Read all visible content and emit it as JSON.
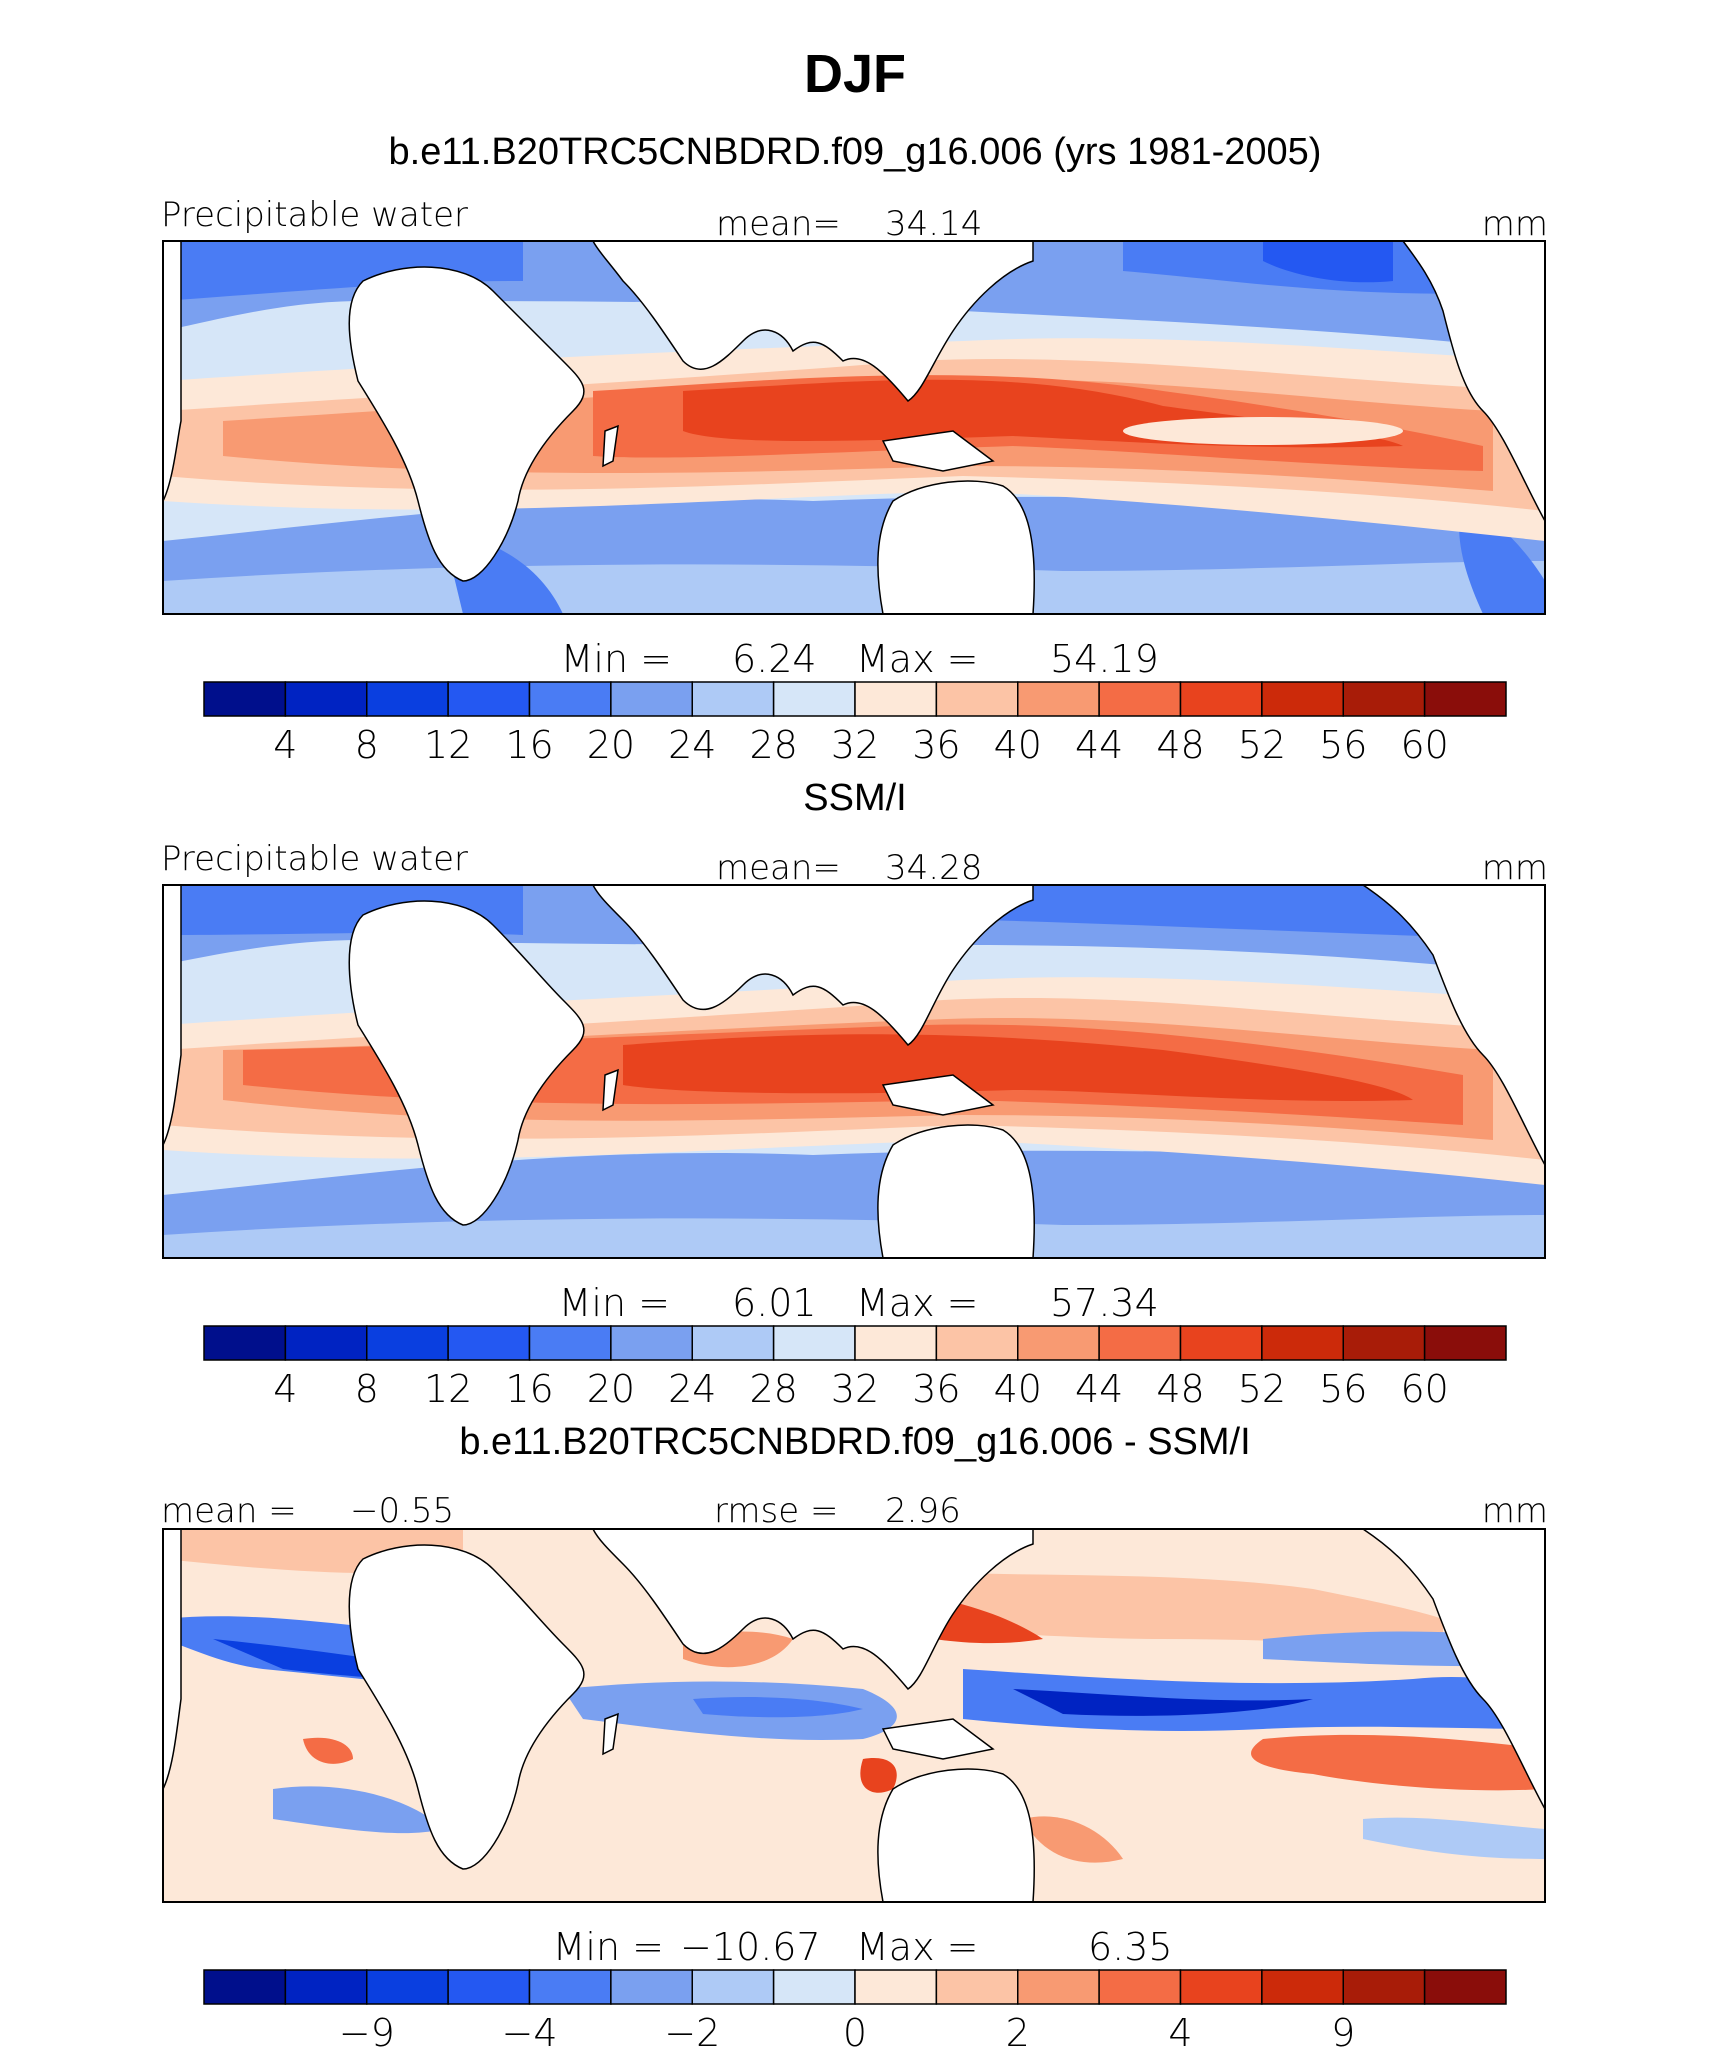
{
  "figure_title": "DJF",
  "colors": {
    "full_palette": [
      "#000f8c",
      "#0023c2",
      "#0a3fe0",
      "#2458f2",
      "#4a7cf4",
      "#7aa0f0",
      "#aecaf6",
      "#d6e6f8",
      "#fde8d8",
      "#fcc4a6",
      "#f89a72",
      "#f46c45",
      "#e8431e",
      "#cc2a0a",
      "#a81c08",
      "#8a0d0a"
    ],
    "land": "#ffffff",
    "coast": "#000000"
  },
  "chart_data": [
    {
      "type": "heatmap",
      "title": "b.e11.B20TRC5CNBDRD.f09_g16.006 (yrs 1981-2005)",
      "variable": "Precipitable water",
      "mean_label": "mean=",
      "mean_value": "34.14",
      "units": "mm",
      "min_label": "Min  =",
      "min_value": "6.24",
      "max_label": "Max  =",
      "max_value": "54.19",
      "value_range": [
        6.24,
        54.19
      ],
      "colorbar_ticks": [
        "4",
        "8",
        "12",
        "16",
        "20",
        "24",
        "28",
        "32",
        "36",
        "40",
        "44",
        "48",
        "52",
        "56",
        "60"
      ]
    },
    {
      "type": "heatmap",
      "title": "SSM/I",
      "variable": "Precipitable water",
      "mean_label": "mean=",
      "mean_value": "34.28",
      "units": "mm",
      "min_label": "Min  =",
      "min_value": "6.01",
      "max_label": "Max  =",
      "max_value": "57.34",
      "value_range": [
        6.01,
        57.34
      ],
      "colorbar_ticks": [
        "4",
        "8",
        "12",
        "16",
        "20",
        "24",
        "28",
        "32",
        "36",
        "40",
        "44",
        "48",
        "52",
        "56",
        "60"
      ]
    },
    {
      "type": "heatmap",
      "title": "b.e11.B20TRC5CNBDRD.f09_g16.006 - SSM/I",
      "variable": "mean =",
      "left_value": "−0.55",
      "mean_label": "rmse =",
      "mean_value": "2.96",
      "units": "mm",
      "min_label": "Min  =",
      "min_value": "−10.67",
      "max_label": "Max  =",
      "max_value": "6.35",
      "value_range": [
        -10.67,
        6.35
      ],
      "colorbar_ticks": [
        "−9",
        "−4",
        "−2",
        "0",
        "2",
        "4",
        "9"
      ]
    }
  ]
}
